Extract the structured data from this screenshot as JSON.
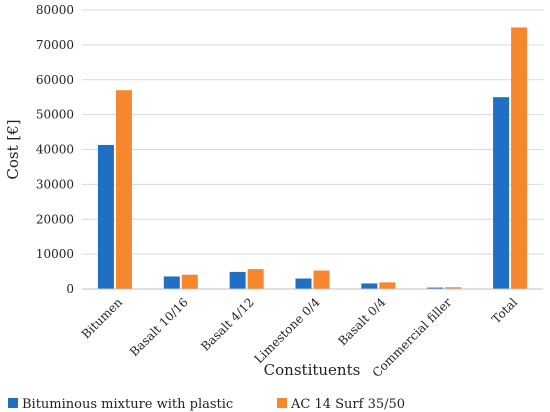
{
  "chart_data": {
    "type": "bar",
    "title": "",
    "xlabel": "Constituents",
    "ylabel": "Cost [€]",
    "ylim": [
      0,
      80000
    ],
    "yticks": [
      0,
      10000,
      20000,
      30000,
      40000,
      50000,
      60000,
      70000,
      80000
    ],
    "grid": true,
    "legend_position": "bottom",
    "categories": [
      "Bitumen",
      "Basalt 10/16",
      "Basalt 4/12",
      "Limestone 0/4",
      "Basalt 0/4",
      "Commercial filler",
      "Total"
    ],
    "series": [
      {
        "name": "Bituminous mixture with plastic",
        "color": "#1f6fc5",
        "values": [
          41300,
          3600,
          4900,
          3000,
          1600,
          400,
          55000
        ]
      },
      {
        "name": "AC 14 Surf 35/50",
        "color": "#f7872e",
        "values": [
          57000,
          4100,
          5700,
          5300,
          1900,
          500,
          75000
        ]
      }
    ]
  }
}
